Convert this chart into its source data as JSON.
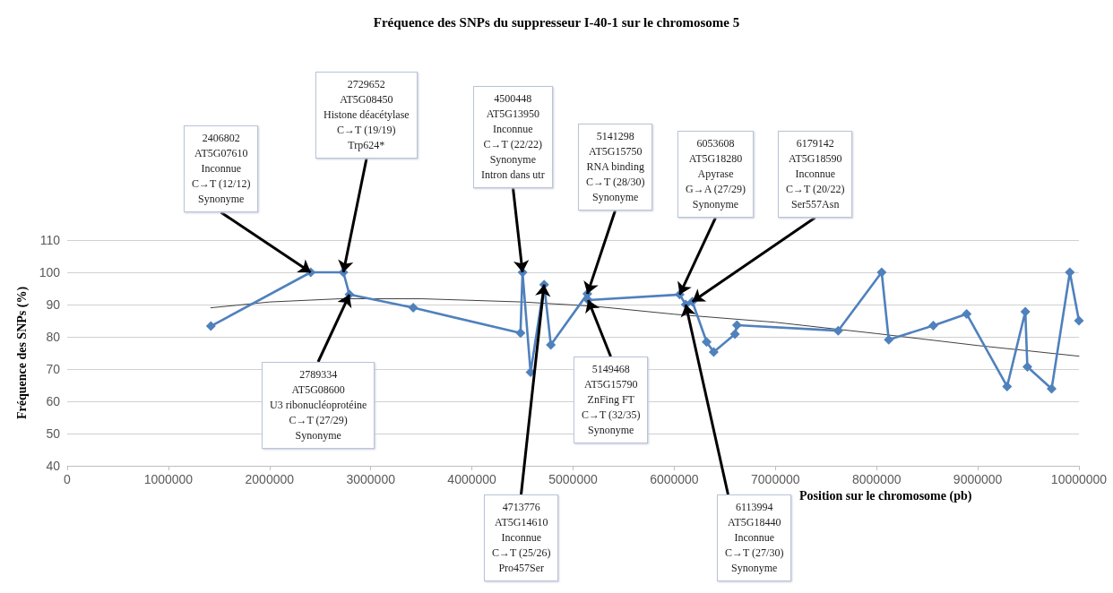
{
  "chart_data": {
    "type": "line",
    "title": "Fréquence des SNPs du suppresseur I-40-1 sur le chromosome 5",
    "xlabel": "Position sur le chromosome (pb)",
    "ylabel": "Fréquence des SNPs (%)",
    "xlim": [
      0,
      10000000
    ],
    "xticks": [
      0,
      1000000,
      2000000,
      3000000,
      4000000,
      5000000,
      6000000,
      7000000,
      8000000,
      9000000,
      10000000
    ],
    "ylim": [
      40,
      110
    ],
    "yticks": [
      40,
      50,
      60,
      70,
      80,
      90,
      100,
      110
    ],
    "grid": "y",
    "marker": "diamond",
    "line_style": "solid",
    "series": [
      {
        "color": "#4f81bd",
        "x": [
          1420000,
          2406802,
          2729652,
          2789334,
          3420000,
          4480000,
          4500448,
          4580000,
          4713776,
          4780000,
          5141298,
          5149468,
          6053608,
          6113994,
          6179142,
          6320000,
          6390000,
          6600000,
          6620000,
          7620000,
          8050000,
          8120000,
          8560000,
          8890000,
          9290000,
          9470000,
          9490000,
          9730000,
          9910000,
          10000000
        ],
        "values": [
          83.3,
          100,
          100,
          93.1,
          89,
          81.2,
          100,
          69,
          96.2,
          77.5,
          93.3,
          91.4,
          93.1,
          90,
          90.9,
          78.4,
          75.3,
          80.8,
          83.6,
          81.9,
          100,
          79.1,
          83.5,
          87.1,
          64.6,
          87.8,
          70.7,
          63.9,
          100,
          85
        ]
      },
      {
        "type": "line",
        "color": "#404040",
        "marker": "none",
        "x": [
          1420000,
          2000000,
          2700000,
          3500000,
          4500000,
          5200000,
          6000000,
          7000000,
          8000000,
          9000000,
          10000000
        ],
        "values": [
          89,
          90.8,
          91.8,
          91.8,
          90.8,
          89.5,
          87,
          84.5,
          81,
          77.3,
          74
        ]
      }
    ],
    "annotations": [
      {
        "text": "2406802\nAT5G07610\nInconnue\nC→T (12/12)\nSynonyme",
        "x": 2406802,
        "y": 100
      },
      {
        "text": "2729652\nAT5G08450\nHistone déacétylase\nC→T (19/19)\nTrp624*",
        "x": 2729652,
        "y": 100
      },
      {
        "text": "4500448\nAT5G13950\nInconnue\nC→T (22/22)\nSynonyme\nIntron dans utr",
        "x": 4500448,
        "y": 100
      },
      {
        "text": "5141298\nAT5G15750\nRNA binding\nC→T (28/30)\nSynonyme",
        "x": 5141298,
        "y": 93.3
      },
      {
        "text": "6053608\nAT5G18280\nApyrase\nG→A (27/29)\nSynonyme",
        "x": 6053608,
        "y": 93.1
      },
      {
        "text": "6179142\nAT5G18590\nInconnue\nC→T (20/22)\nSer557Asn",
        "x": 6179142,
        "y": 90.9
      },
      {
        "text": "2789334\nAT5G08600\nU3 ribonucléoprotéine\nC→T (27/29)\nSynonyme",
        "x": 2789334,
        "y": 93.1
      },
      {
        "text": "4713776\nAT5G14610\nInconnue\nC→T (25/26)\nPro457Ser",
        "x": 4713776,
        "y": 96.2
      },
      {
        "text": "5149468\nAT5G15790\nZnFing FT\nC→T (32/35)\nSynonyme",
        "x": 5149468,
        "y": 91.4
      },
      {
        "text": "6113994\nAT5G18440\nInconnue\nC→T (27/30)\nSynonyme",
        "x": 6113994,
        "y": 90
      }
    ]
  }
}
